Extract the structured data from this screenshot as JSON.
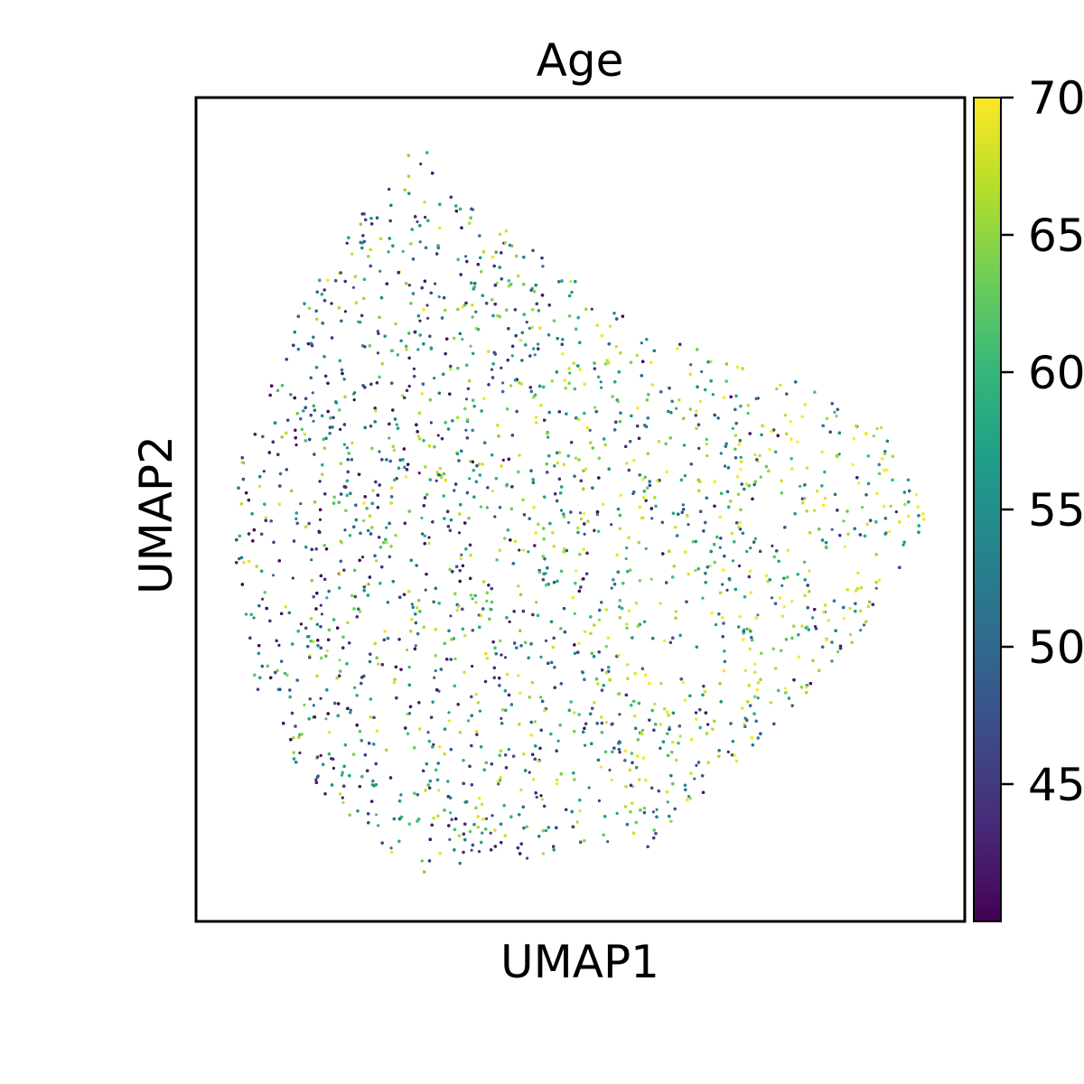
{
  "chart_data": {
    "type": "scatter",
    "title": "Age",
    "xlabel": "UMAP1",
    "ylabel": "UMAP2",
    "x_ticks": [],
    "y_ticks": [],
    "grid": false,
    "legend": "none",
    "colorbar": {
      "label": "",
      "range": [
        40,
        70
      ],
      "ticks": [
        45,
        50,
        55,
        60,
        65,
        70
      ],
      "tick_labels": [
        "45",
        "50",
        "55",
        "60",
        "65",
        "70"
      ],
      "colormap": "viridis",
      "colormap_stops": [
        "#440154",
        "#482878",
        "#3e4989",
        "#31688e",
        "#26828e",
        "#1f9e89",
        "#35b779",
        "#6ece58",
        "#b5de2b",
        "#fde725"
      ]
    },
    "point_color": "Age",
    "point_count_approx": 20000
  }
}
